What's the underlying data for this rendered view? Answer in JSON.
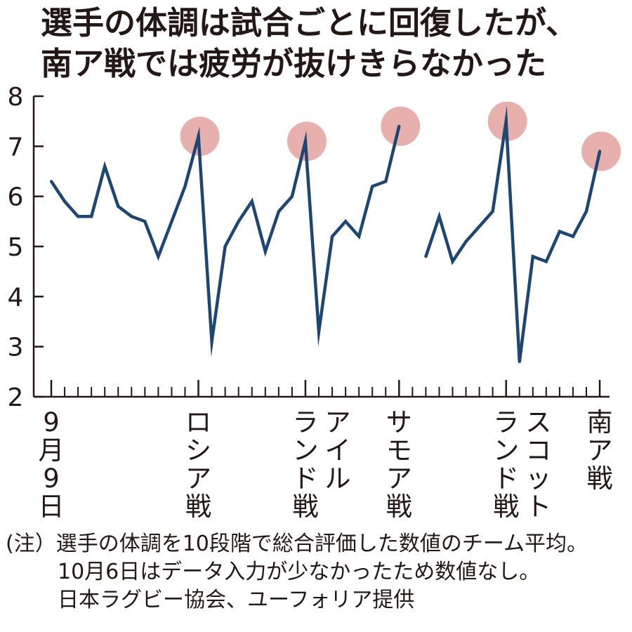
{
  "title": {
    "line1": "選手の体調は試合ごとに回復したが、",
    "line2": "南ア戦では疲労が抜けきらなかった"
  },
  "chart_data": {
    "type": "line",
    "ylim": [
      2,
      8
    ],
    "yticks": [
      "2",
      "3",
      "4",
      "5",
      "6",
      "7",
      "8"
    ],
    "y": [
      6.3,
      5.9,
      5.6,
      5.6,
      6.6,
      5.8,
      5.6,
      5.5,
      4.8,
      5.5,
      6.2,
      7.2,
      3.1,
      5.0,
      5.5,
      5.9,
      4.9,
      5.7,
      6.0,
      7.1,
      3.3,
      5.2,
      5.5,
      5.2,
      6.2,
      6.3,
      7.4,
      null,
      4.8,
      5.6,
      4.7,
      5.1,
      5.4,
      5.7,
      7.5,
      2.7,
      4.8,
      4.7,
      5.3,
      5.2,
      5.7,
      6.9
    ],
    "match_highlights": [
      11,
      19,
      26,
      34,
      41
    ],
    "labels": [
      {
        "index": 0,
        "columns": [
          "9月9日"
        ]
      },
      {
        "index": 11,
        "columns": [
          "ロシア戦"
        ]
      },
      {
        "index": 19,
        "columns": [
          "ランド戦",
          "アイル"
        ]
      },
      {
        "index": 26,
        "columns": [
          "サモア戦"
        ]
      },
      {
        "index": 34,
        "columns": [
          "ランド戦",
          "スコット"
        ]
      },
      {
        "index": 41,
        "columns": [
          "南ア戦"
        ]
      }
    ],
    "colors": {
      "line": "#1d4673",
      "highlight": "#e8b0ad",
      "axis": "#231815"
    }
  },
  "notes": [
    "(注）選手の体調を10段階で総合評価した数値のチーム平均。",
    "10月6日はデータ入力が少なかったため数値なし。",
    "日本ラグビー協会、ユーフォリア提供"
  ]
}
